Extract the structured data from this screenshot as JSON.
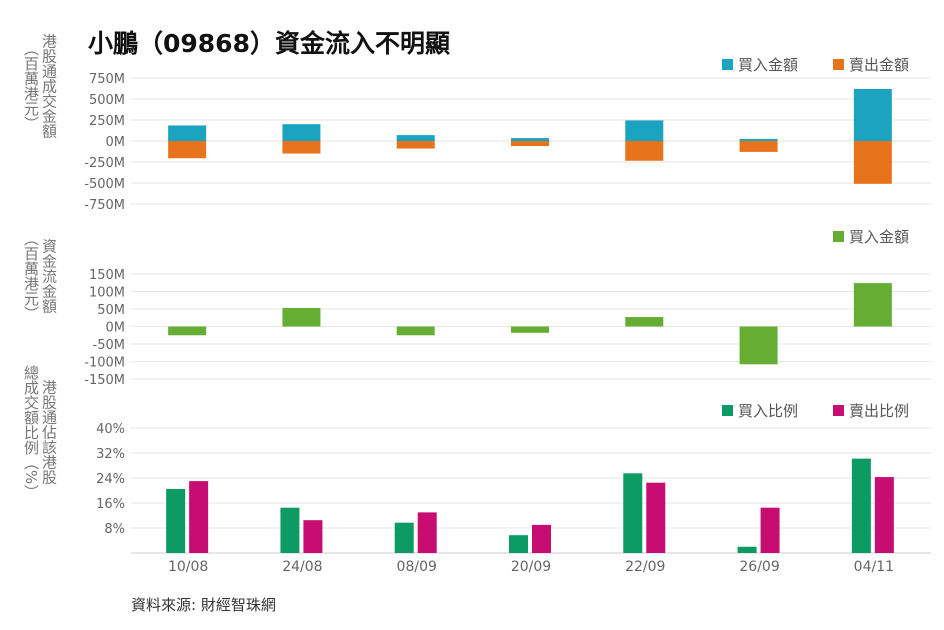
{
  "title": "小鵬（09868）資金流入不明顯",
  "source": "資料來源: 財經智珠網",
  "colors": {
    "buy": "#1ba3bf",
    "sell": "#e8731d",
    "net": "#66ad33",
    "buy_ratio": "#0e9a63",
    "sell_ratio": "#c80d72",
    "grid": "#e6e6e6"
  },
  "chart_data": [
    {
      "type": "bar",
      "ylabel": [
        "港股通成交金額",
        "（百萬港元）"
      ],
      "categories": [
        "10/08",
        "24/08",
        "08/09",
        "20/09",
        "22/09",
        "26/09",
        "04/11"
      ],
      "ylim": [
        -750,
        750
      ],
      "yticks": [
        750,
        500,
        250,
        0,
        -250,
        -500,
        -750
      ],
      "ytick_labels": [
        "750M",
        "500M",
        "250M",
        "0M",
        "-250M",
        "-500M",
        "-750M"
      ],
      "legend_position": "top-right",
      "grid": true,
      "series": [
        {
          "name": "買入金額",
          "values": [
            185,
            200,
            70,
            35,
            245,
            25,
            620
          ]
        },
        {
          "name": "賣出金額",
          "values": [
            -205,
            -150,
            -90,
            -60,
            -235,
            -130,
            -510
          ]
        }
      ]
    },
    {
      "type": "bar",
      "ylabel": [
        "資金流金額",
        "（百萬港元）"
      ],
      "categories": [
        "10/08",
        "24/08",
        "08/09",
        "20/09",
        "22/09",
        "26/09",
        "04/11"
      ],
      "ylim": [
        -150,
        150
      ],
      "yticks": [
        150,
        100,
        50,
        0,
        -50,
        -100,
        -150
      ],
      "ytick_labels": [
        "150M",
        "100M",
        "50M",
        "0M",
        "-50M",
        "-100M",
        "-150M"
      ],
      "legend_position": "top-right",
      "grid": true,
      "series": [
        {
          "name": "買入金額",
          "values": [
            -25,
            53,
            -25,
            -18,
            27,
            -108,
            124
          ]
        }
      ]
    },
    {
      "type": "bar",
      "ylabel": [
        "港股通佔該港股",
        "總成交額比例（%）"
      ],
      "categories": [
        "10/08",
        "24/08",
        "08/09",
        "20/09",
        "22/09",
        "26/09",
        "04/11"
      ],
      "ylim": [
        0,
        40
      ],
      "yticks": [
        40,
        32,
        24,
        16,
        8
      ],
      "ytick_labels": [
        "40%",
        "32%",
        "24%",
        "16%",
        "8%"
      ],
      "legend_position": "top-right",
      "grid": true,
      "series": [
        {
          "name": "買入比例",
          "values": [
            20.5,
            14.5,
            9.7,
            5.7,
            25.5,
            2.0,
            30.2
          ]
        },
        {
          "name": "賣出比例",
          "values": [
            23.0,
            10.5,
            13.0,
            9.0,
            22.5,
            14.5,
            24.3
          ]
        }
      ]
    }
  ]
}
